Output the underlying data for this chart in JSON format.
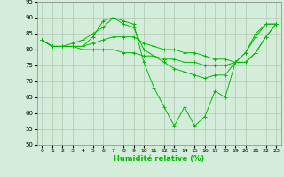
{
  "xlabel": "Humidité relative (%)",
  "xlim": [
    -0.5,
    23.5
  ],
  "ylim": [
    50,
    95
  ],
  "yticks": [
    50,
    55,
    60,
    65,
    70,
    75,
    80,
    85,
    90,
    95
  ],
  "xticks": [
    0,
    1,
    2,
    3,
    4,
    5,
    6,
    7,
    8,
    9,
    10,
    11,
    12,
    13,
    14,
    15,
    16,
    17,
    18,
    19,
    20,
    21,
    22,
    23
  ],
  "bg_color": "#d4edda",
  "grid_color": "#b0c8b0",
  "line_color": "#00bb00",
  "lines": [
    {
      "x": [
        0,
        1,
        2,
        3,
        4,
        5,
        6,
        7,
        8,
        9,
        10,
        11,
        12,
        13,
        14,
        15,
        16,
        17,
        18,
        19,
        20,
        21,
        22,
        23
      ],
      "y": [
        83,
        81,
        81,
        81,
        81,
        84,
        89,
        90,
        89,
        88,
        76,
        68,
        62,
        56,
        62,
        56,
        59,
        67,
        65,
        76,
        79,
        85,
        88,
        88
      ]
    },
    {
      "x": [
        0,
        1,
        2,
        3,
        4,
        5,
        6,
        7,
        8,
        9,
        10,
        11,
        12,
        13,
        14,
        15,
        16,
        17,
        18,
        19,
        20,
        21,
        22,
        23
      ],
      "y": [
        83,
        81,
        81,
        82,
        83,
        85,
        87,
        90,
        88,
        87,
        80,
        78,
        76,
        74,
        73,
        72,
        71,
        72,
        72,
        76,
        79,
        84,
        88,
        88
      ]
    },
    {
      "x": [
        0,
        1,
        2,
        3,
        4,
        5,
        6,
        7,
        8,
        9,
        10,
        11,
        12,
        13,
        14,
        15,
        16,
        17,
        18,
        19,
        20,
        21,
        22,
        23
      ],
      "y": [
        83,
        81,
        81,
        81,
        81,
        82,
        83,
        84,
        84,
        84,
        82,
        81,
        80,
        80,
        79,
        79,
        78,
        77,
        77,
        76,
        76,
        79,
        84,
        88
      ]
    },
    {
      "x": [
        0,
        1,
        2,
        3,
        4,
        5,
        6,
        7,
        8,
        9,
        10,
        11,
        12,
        13,
        14,
        15,
        16,
        17,
        18,
        19,
        20,
        21,
        22,
        23
      ],
      "y": [
        83,
        81,
        81,
        81,
        80,
        80,
        80,
        80,
        79,
        79,
        78,
        78,
        77,
        77,
        76,
        76,
        75,
        75,
        75,
        76,
        76,
        79,
        84,
        88
      ]
    }
  ]
}
